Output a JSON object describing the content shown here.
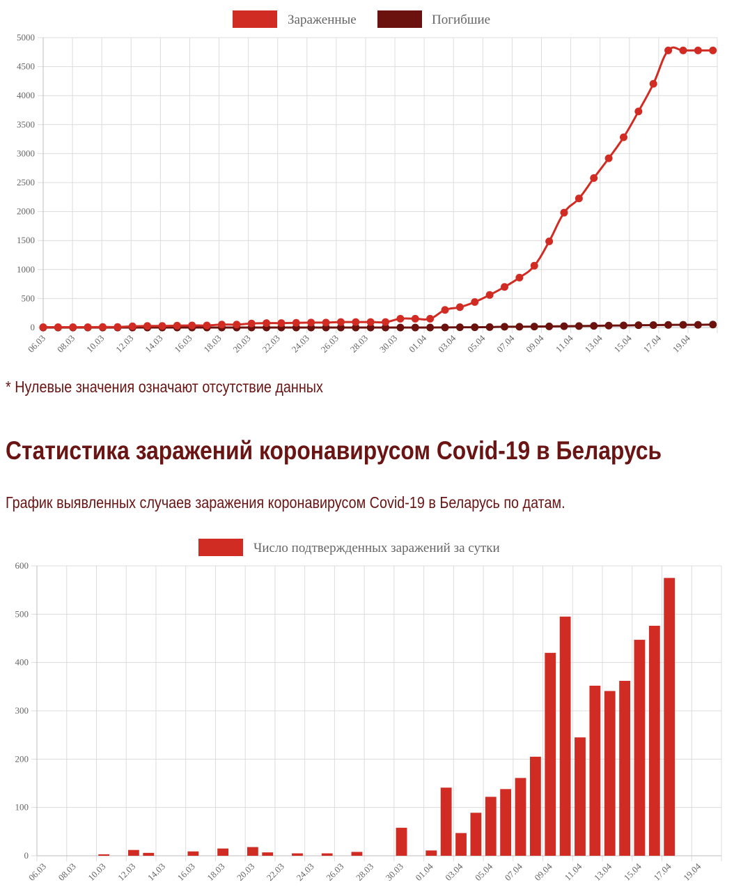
{
  "note": "* Нулевые значения означают отсутствие данных",
  "heading": "Статистика заражений коронавирусом Covid-19 в Беларусь",
  "subheading": "График выявленных случаев заражения коронавирусом Covid-19 в Беларусь по датам.",
  "chart_data": [
    {
      "type": "line",
      "x_tick_labels": [
        "06.03",
        "08.03",
        "10.03",
        "12.03",
        "14.03",
        "16.03",
        "18.03",
        "20.03",
        "22.03",
        "24.03",
        "26.03",
        "28.03",
        "30.03",
        "01.04",
        "03.04",
        "05.04",
        "07.04",
        "09.04",
        "11.04",
        "13.04",
        "15.04",
        "17.04",
        "19.04"
      ],
      "ylim": [
        0,
        5000
      ],
      "y_ticks": [
        0,
        500,
        1000,
        1500,
        2000,
        2500,
        3000,
        3500,
        4000,
        4500,
        5000
      ],
      "grid": true,
      "legend_position": "top",
      "colors": {
        "series_0": "#d12c24",
        "series_1": "#6b120e"
      },
      "series": [
        {
          "name": "Зараженные",
          "values": [
            6,
            6,
            6,
            6,
            9,
            9,
            21,
            27,
            27,
            33,
            36,
            36,
            51,
            51,
            69,
            76,
            76,
            81,
            86,
            86,
            94,
            94,
            94,
            94,
            152,
            152,
            152,
            304,
            351,
            440,
            562,
            700,
            861,
            1066,
            1486,
            1981,
            2226,
            2578,
            2919,
            3281,
            3728,
            4204,
            4779,
            4779,
            4779,
            4779
          ]
        },
        {
          "name": "Погибшие",
          "values": [
            0,
            0,
            0,
            0,
            0,
            0,
            0,
            0,
            0,
            0,
            0,
            0,
            0,
            0,
            0,
            0,
            0,
            0,
            0,
            0,
            0,
            0,
            0,
            0,
            0,
            0,
            0,
            2,
            4,
            5,
            8,
            13,
            13,
            16,
            19,
            23,
            26,
            29,
            33,
            36,
            40,
            42,
            45,
            47,
            47,
            51
          ]
        }
      ]
    },
    {
      "type": "bar",
      "x_tick_labels": [
        "06.03",
        "08.03",
        "10.03",
        "12.03",
        "14.03",
        "16.03",
        "18.03",
        "20.03",
        "22.03",
        "24.03",
        "26.03",
        "28.03",
        "30.03",
        "01.04",
        "03.04",
        "05.04",
        "07.04",
        "09.04",
        "11.04",
        "13.04",
        "15.04",
        "17.04",
        "19.04"
      ],
      "ylim": [
        0,
        600
      ],
      "y_ticks": [
        0,
        100,
        200,
        300,
        400,
        500,
        600
      ],
      "grid": true,
      "legend_position": "top",
      "colors": {
        "series_0": "#d12c24"
      },
      "series": [
        {
          "name": "Число подтвержденных заражений за сутки",
          "values": [
            0,
            0,
            0,
            0,
            3,
            0,
            12,
            6,
            0,
            0,
            9,
            0,
            15,
            0,
            18,
            7,
            0,
            5,
            0,
            5,
            0,
            8,
            0,
            0,
            58,
            0,
            11,
            141,
            47,
            89,
            122,
            138,
            161,
            205,
            420,
            495,
            245,
            352,
            341,
            362,
            447,
            476,
            575,
            0,
            0,
            0
          ]
        }
      ]
    }
  ]
}
